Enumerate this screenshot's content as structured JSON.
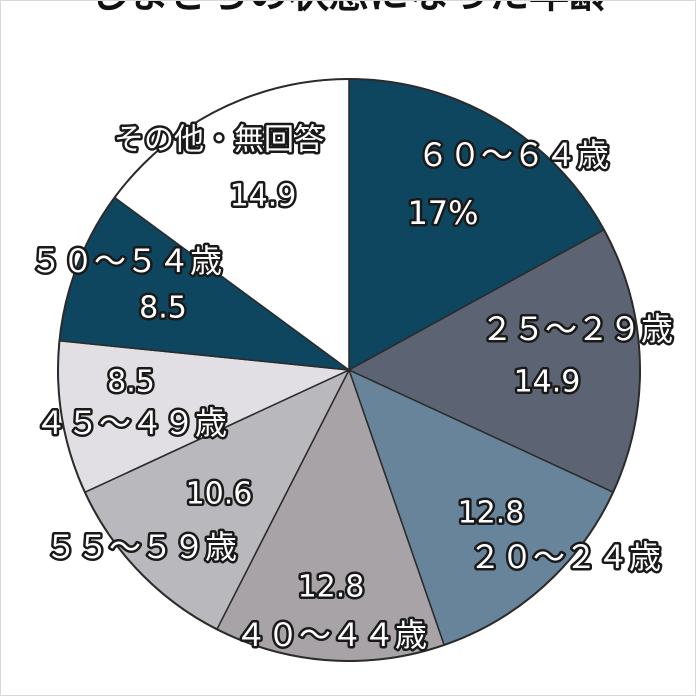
{
  "chart_data": {
    "type": "pie",
    "title": "しまさらの状態になった年齢",
    "unit": "%",
    "slices": [
      {
        "name": "６０～６４歳",
        "value": 17,
        "value_label": "17%",
        "color": "#0e4660",
        "label_color": "#ffffff"
      },
      {
        "name": "２５～２９歳",
        "value": 14.9,
        "value_label": "14.9",
        "color": "#5c6373",
        "label_color": "#ffffff"
      },
      {
        "name": "２０～２４歳",
        "value": 12.8,
        "value_label": "12.8",
        "color": "#67849a",
        "label_color": "#ffffff"
      },
      {
        "name": "４０～４４歳",
        "value": 12.8,
        "value_label": "12.8",
        "color": "#a7a3a6",
        "label_color": "#ffffff"
      },
      {
        "name": "５５～５９歳",
        "value": 10.6,
        "value_label": "10.6",
        "color": "#b9b8bd",
        "label_color": "#ffffff"
      },
      {
        "name": "４５～４９歳",
        "value": 8.5,
        "value_label": "8.5",
        "color": "#e1dfe3",
        "label_color": "#ffffff"
      },
      {
        "name": "５０～５４歳",
        "value": 8.5,
        "value_label": "8.5",
        "color": "#0e4660",
        "label_color": "#ffffff"
      },
      {
        "name": "その他・無回答",
        "value": 14.9,
        "value_label": "14.9",
        "color": "#ffffff",
        "label_color": "#ffffff"
      }
    ]
  }
}
